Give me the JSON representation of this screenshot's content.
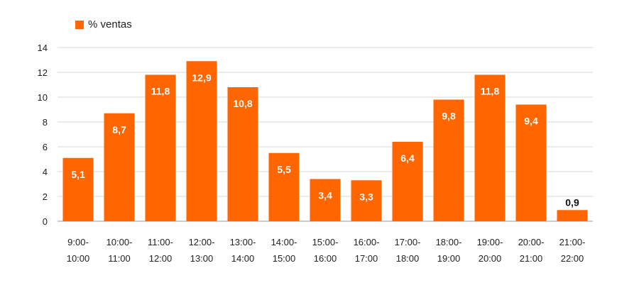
{
  "chart_data": {
    "type": "bar",
    "title": "",
    "xlabel": "",
    "ylabel": "",
    "ylim": [
      0,
      14
    ],
    "yticks": [
      0,
      2,
      4,
      6,
      8,
      10,
      12,
      14
    ],
    "grid": "horizontal",
    "legend_position": "top-left",
    "categories": [
      [
        "9:00-",
        "10:00"
      ],
      [
        "10:00-",
        "11:00"
      ],
      [
        "11:00-",
        "12:00"
      ],
      [
        "12:00-",
        "13:00"
      ],
      [
        "13:00-",
        "14:00"
      ],
      [
        "14:00-",
        "15:00"
      ],
      [
        "15:00-",
        "16:00"
      ],
      [
        "16:00-",
        "17:00"
      ],
      [
        "17:00-",
        "18:00"
      ],
      [
        "18:00-",
        "19:00"
      ],
      [
        "19:00-",
        "20:00"
      ],
      [
        "20:00-",
        "21:00"
      ],
      [
        "21:00-",
        "22:00"
      ]
    ],
    "series": [
      {
        "name": "% ventas",
        "color": "#FF6600",
        "values": [
          5.1,
          8.7,
          11.8,
          12.9,
          10.8,
          5.5,
          3.4,
          3.3,
          6.4,
          9.8,
          11.8,
          9.4,
          0.9
        ],
        "labels": [
          "5,1",
          "8,7",
          "11,8",
          "12,9",
          "10,8",
          "5,5",
          "3,4",
          "3,3",
          "6,4",
          "9,8",
          "11,8",
          "9,4",
          "0,9"
        ]
      }
    ]
  }
}
